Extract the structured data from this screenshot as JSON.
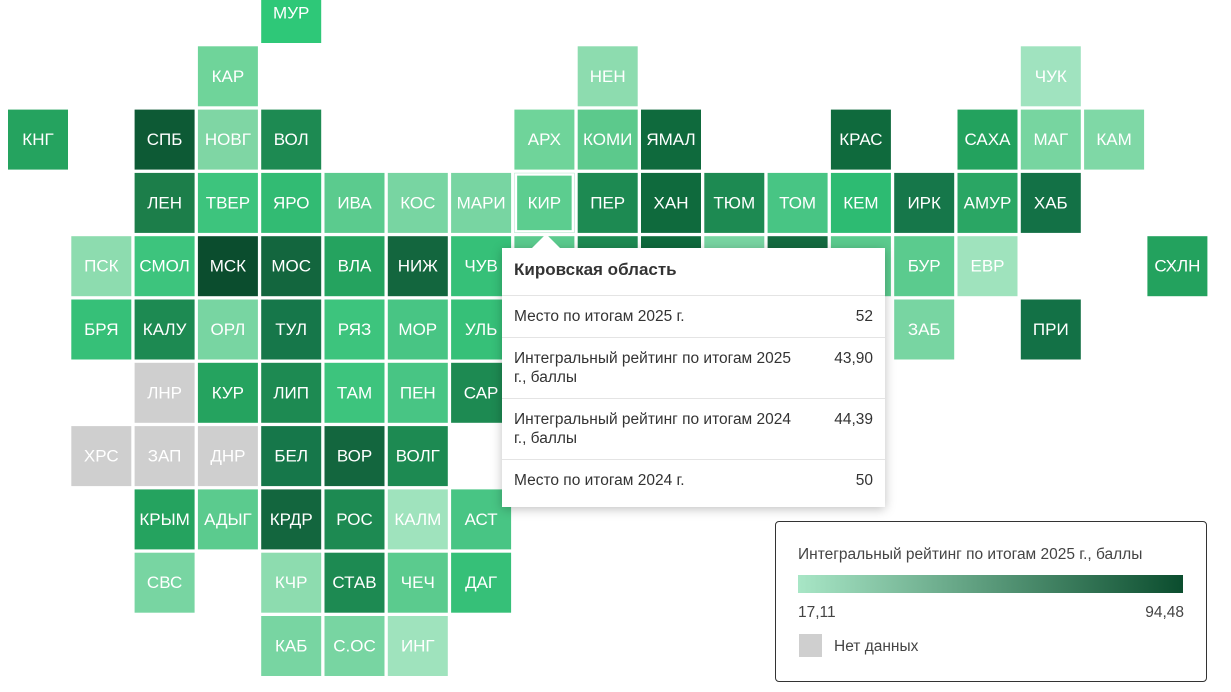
{
  "grid": {
    "rows": [
      [
        null,
        null,
        null,
        null,
        {
          "label": "МУР",
          "color": "#2ec878"
        }
      ],
      [
        null,
        null,
        null,
        {
          "label": "КАР",
          "color": "#6fd49a"
        },
        null,
        null,
        null,
        null,
        null,
        {
          "label": "НЕН",
          "color": "#8ddcaf"
        },
        null,
        null,
        null,
        null,
        null,
        null,
        {
          "label": "ЧУК",
          "color": "#a0e3bf"
        }
      ],
      [
        {
          "label": "КНГ",
          "color": "#25a35f"
        },
        null,
        {
          "label": "СПБ",
          "color": "#0d5a35"
        },
        {
          "label": "НОВГ",
          "color": "#7fd6a4"
        },
        {
          "label": "ВОЛ",
          "color": "#1d8a52"
        },
        null,
        null,
        null,
        {
          "label": "АРХ",
          "color": "#6fd49a"
        },
        {
          "label": "КОМИ",
          "color": "#5cc98c"
        },
        {
          "label": "ЯМАЛ",
          "color": "#0f6a3d"
        },
        null,
        null,
        {
          "label": "КРАС",
          "color": "#0f6a3d"
        },
        null,
        {
          "label": "САХА",
          "color": "#23a25e"
        },
        {
          "label": "МАГ",
          "color": "#77d5a0"
        },
        {
          "label": "КАМ",
          "color": "#7fd8a6"
        }
      ],
      [
        null,
        null,
        {
          "label": "ЛЕН",
          "color": "#1c7e4a"
        },
        {
          "label": "ТВЕР",
          "color": "#3dc47d"
        },
        {
          "label": "ЯРО",
          "color": "#32bb73"
        },
        {
          "label": "ИВА",
          "color": "#5bcb8e"
        },
        {
          "label": "КОС",
          "color": "#78d5a2"
        },
        {
          "label": "МАРИ",
          "color": "#78d5a2"
        },
        {
          "label": "КИР",
          "color": "#5ccd8f"
        },
        {
          "label": "ПЕР",
          "color": "#1d8a52"
        },
        {
          "label": "ХАН",
          "color": "#0f6a3d"
        },
        {
          "label": "ТЮМ",
          "color": "#1d8a52"
        },
        {
          "label": "ТОМ",
          "color": "#48c584"
        },
        {
          "label": "КЕМ",
          "color": "#2dbb72"
        },
        {
          "label": "ИРК",
          "color": "#16774a"
        },
        {
          "label": "АМУР",
          "color": "#2aa664"
        },
        {
          "label": "ХАБ",
          "color": "#137146"
        }
      ],
      [
        null,
        {
          "label": "ПСК",
          "color": "#8ddcaf"
        },
        {
          "label": "СМОЛ",
          "color": "#3dc47d"
        },
        {
          "label": "МСК",
          "color": "#0b4d2e"
        },
        {
          "label": "МОС",
          "color": "#13663e"
        },
        {
          "label": "ВЛА",
          "color": "#25a35f"
        },
        {
          "label": "НИЖ",
          "color": "#13663e"
        },
        {
          "label": "ЧУВ",
          "color": "#36c078"
        },
        {
          "label": null,
          "color": "#5bcb8e"
        },
        {
          "label": null,
          "color": "#1d8a52"
        },
        {
          "label": null,
          "color": "#0f6a3d"
        },
        {
          "label": null,
          "color": "#78d5a2"
        },
        {
          "label": null,
          "color": "#146b40"
        },
        {
          "label": null,
          "color": "#5bcb8e"
        },
        {
          "label": "БУР",
          "color": "#5bcb8e"
        },
        {
          "label": "ЕВР",
          "color": "#9fe3bd"
        },
        null,
        null,
        {
          "label": "СХЛН",
          "color": "#23a25e"
        }
      ],
      [
        null,
        {
          "label": "БРЯ",
          "color": "#36c078"
        },
        {
          "label": "КАЛУ",
          "color": "#1d8a52"
        },
        {
          "label": "ОРЛ",
          "color": "#78d5a2"
        },
        {
          "label": "ТУЛ",
          "color": "#16774a"
        },
        {
          "label": "РЯЗ",
          "color": "#3dc47d"
        },
        {
          "label": "МОР",
          "color": "#48c584"
        },
        {
          "label": "УЛЬ",
          "color": "#36c078"
        },
        null,
        null,
        null,
        null,
        null,
        null,
        {
          "label": "ЗАБ",
          "color": "#78d5a2"
        },
        null,
        {
          "label": "ПРИ",
          "color": "#137146"
        }
      ],
      [
        null,
        null,
        {
          "label": "ЛНР",
          "color": "#cfcfcf"
        },
        {
          "label": "КУР",
          "color": "#25a35f"
        },
        {
          "label": "ЛИП",
          "color": "#1d8a52"
        },
        {
          "label": "ТАМ",
          "color": "#3dc47d"
        },
        {
          "label": "ПЕН",
          "color": "#48c584"
        },
        {
          "label": "САР",
          "color": "#1d8a52"
        }
      ],
      [
        null,
        {
          "label": "ХРС",
          "color": "#cfcfcf"
        },
        {
          "label": "ЗАП",
          "color": "#cfcfcf"
        },
        {
          "label": "ДНР",
          "color": "#cfcfcf"
        },
        {
          "label": "БЕЛ",
          "color": "#16774a"
        },
        {
          "label": "ВОР",
          "color": "#13663e"
        },
        {
          "label": "ВОЛГ",
          "color": "#1d8a52"
        }
      ],
      [
        null,
        null,
        {
          "label": "КРЫМ",
          "color": "#25a35f"
        },
        {
          "label": "АДЫГ",
          "color": "#5bcb8e"
        },
        {
          "label": "КРДР",
          "color": "#13663e"
        },
        {
          "label": "РОС",
          "color": "#1d8a52"
        },
        {
          "label": "КАЛМ",
          "color": "#9fe3bd"
        },
        {
          "label": "АСТ",
          "color": "#48c584"
        }
      ],
      [
        null,
        null,
        {
          "label": "СВС",
          "color": "#78d5a2"
        },
        null,
        {
          "label": "КЧР",
          "color": "#8ddcaf"
        },
        {
          "label": "СТАВ",
          "color": "#1d8a52"
        },
        {
          "label": "ЧЕЧ",
          "color": "#5bcb8e"
        },
        {
          "label": "ДАГ",
          "color": "#36c078"
        }
      ],
      [
        null,
        null,
        null,
        null,
        {
          "label": "КАБ",
          "color": "#78d5a2"
        },
        {
          "label": "С.ОС",
          "color": "#78d5a2"
        },
        {
          "label": "ИНГ",
          "color": "#9fe3bd"
        }
      ]
    ]
  },
  "tooltip": {
    "title": "Кировская область",
    "rows": [
      {
        "label": "Место по итогам 2025 г.",
        "value": "52"
      },
      {
        "label": "Интегральный рейтинг по итогам 2025 г., баллы",
        "value": "43,90"
      },
      {
        "label": "Интегральный рейтинг по итогам 2024 г., баллы",
        "value": "44,39"
      },
      {
        "label": "Место по итогам 2024 г.",
        "value": "50"
      }
    ]
  },
  "legend": {
    "title": "Интегральный рейтинг по итогам 2025 г., баллы",
    "min": "17,11",
    "max": "94,48",
    "color_min": "#a8e6c6",
    "color_max": "#0b4d2e",
    "no_data": "Нет данных",
    "no_data_color": "#cfcfcf"
  }
}
